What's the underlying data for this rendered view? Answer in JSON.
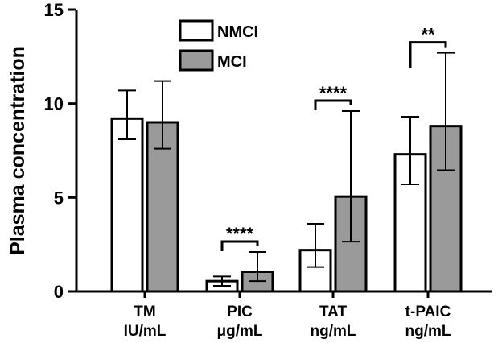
{
  "chart_data": {
    "type": "bar",
    "title": "",
    "xlabel": "",
    "ylabel": "Plasma concentration",
    "ylim": [
      0,
      15
    ],
    "yticks": [
      "0",
      "5",
      "10",
      "15"
    ],
    "grid": false,
    "legend_position": "top-center",
    "categories": [
      {
        "name": "TM",
        "unit": "IU/mL"
      },
      {
        "name": "PIC",
        "unit": "μg/mL"
      },
      {
        "name": "TAT",
        "unit": "ng/mL"
      },
      {
        "name": "t-PAIC",
        "unit": "ng/mL"
      }
    ],
    "series": [
      {
        "name": "NMCI",
        "color": "#ffffff",
        "values": [
          9.2,
          0.55,
          2.2,
          7.3
        ],
        "error_low": [
          8.1,
          0.3,
          1.3,
          5.7
        ],
        "error_high": [
          10.7,
          0.8,
          3.6,
          9.3
        ]
      },
      {
        "name": "MCI",
        "color": "#9a9a9a",
        "values": [
          9.0,
          1.05,
          5.05,
          8.8
        ],
        "error_low": [
          7.6,
          0.55,
          2.65,
          6.45
        ],
        "error_high": [
          11.2,
          2.1,
          9.6,
          12.7
        ]
      }
    ],
    "significance": [
      {
        "category_index": 1,
        "label": "****"
      },
      {
        "category_index": 2,
        "label": "****"
      },
      {
        "category_index": 3,
        "label": "**"
      }
    ]
  }
}
